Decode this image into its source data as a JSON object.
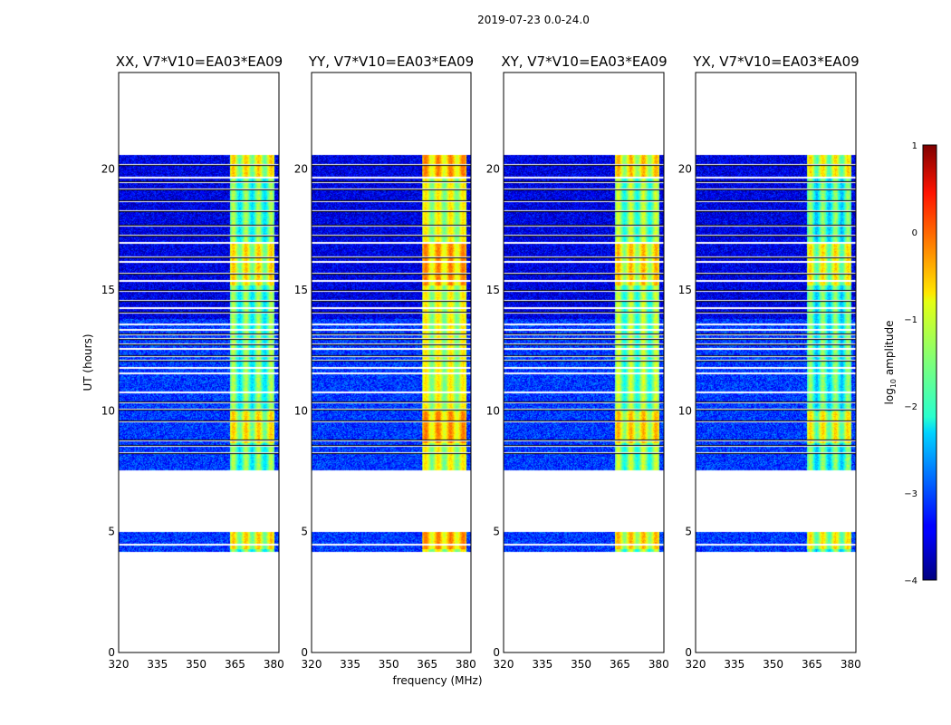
{
  "chart_data": {
    "type": "heatmap",
    "suptitle": "2019-07-23 0.0-24.0",
    "xlabel": "frequency (MHz)",
    "ylabel": "UT (hours)",
    "xlim": [
      320,
      382
    ],
    "ylim": [
      0,
      24
    ],
    "xticks": [
      "320",
      "335",
      "350",
      "365",
      "380"
    ],
    "yticks": [
      "0",
      "5",
      "10",
      "15",
      "20"
    ],
    "colorbar": {
      "label": "log",
      "label_sub": "10",
      "label_suffix": " amplitude",
      "range": [
        -4,
        1
      ],
      "ticks": [
        "−4",
        "−3",
        "−2",
        "−1",
        "0",
        "1"
      ],
      "colormap": "jet"
    },
    "panels": [
      {
        "title": "XX, V7*V10=EA03*EA09",
        "band_strength": 0.92
      },
      {
        "title": "YY, V7*V10=EA03*EA09",
        "band_strength": 1.12
      },
      {
        "title": "XY, V7*V10=EA03*EA09",
        "band_strength": 0.98
      },
      {
        "title": "YX, V7*V10=EA03*EA09",
        "band_strength": 0.88
      }
    ],
    "data_time_ranges_hours": [
      [
        4.2,
        5.0
      ],
      [
        7.5,
        20.6
      ]
    ],
    "rfi_band_mhz": [
      363,
      380
    ],
    "gap_rows_hours": [
      4.5,
      7.55,
      8.3,
      8.6,
      8.8,
      9.6,
      10.1,
      10.4,
      10.8,
      11.6,
      11.8,
      12.1,
      12.3,
      12.6,
      12.8,
      13.0,
      13.2,
      13.4,
      13.6,
      14.1,
      14.3,
      14.6,
      15.0,
      15.4,
      15.7,
      16.2,
      16.4,
      17.0,
      17.3,
      17.7,
      18.3,
      18.7,
      19.2,
      19.5,
      19.7,
      20.2
    ]
  }
}
